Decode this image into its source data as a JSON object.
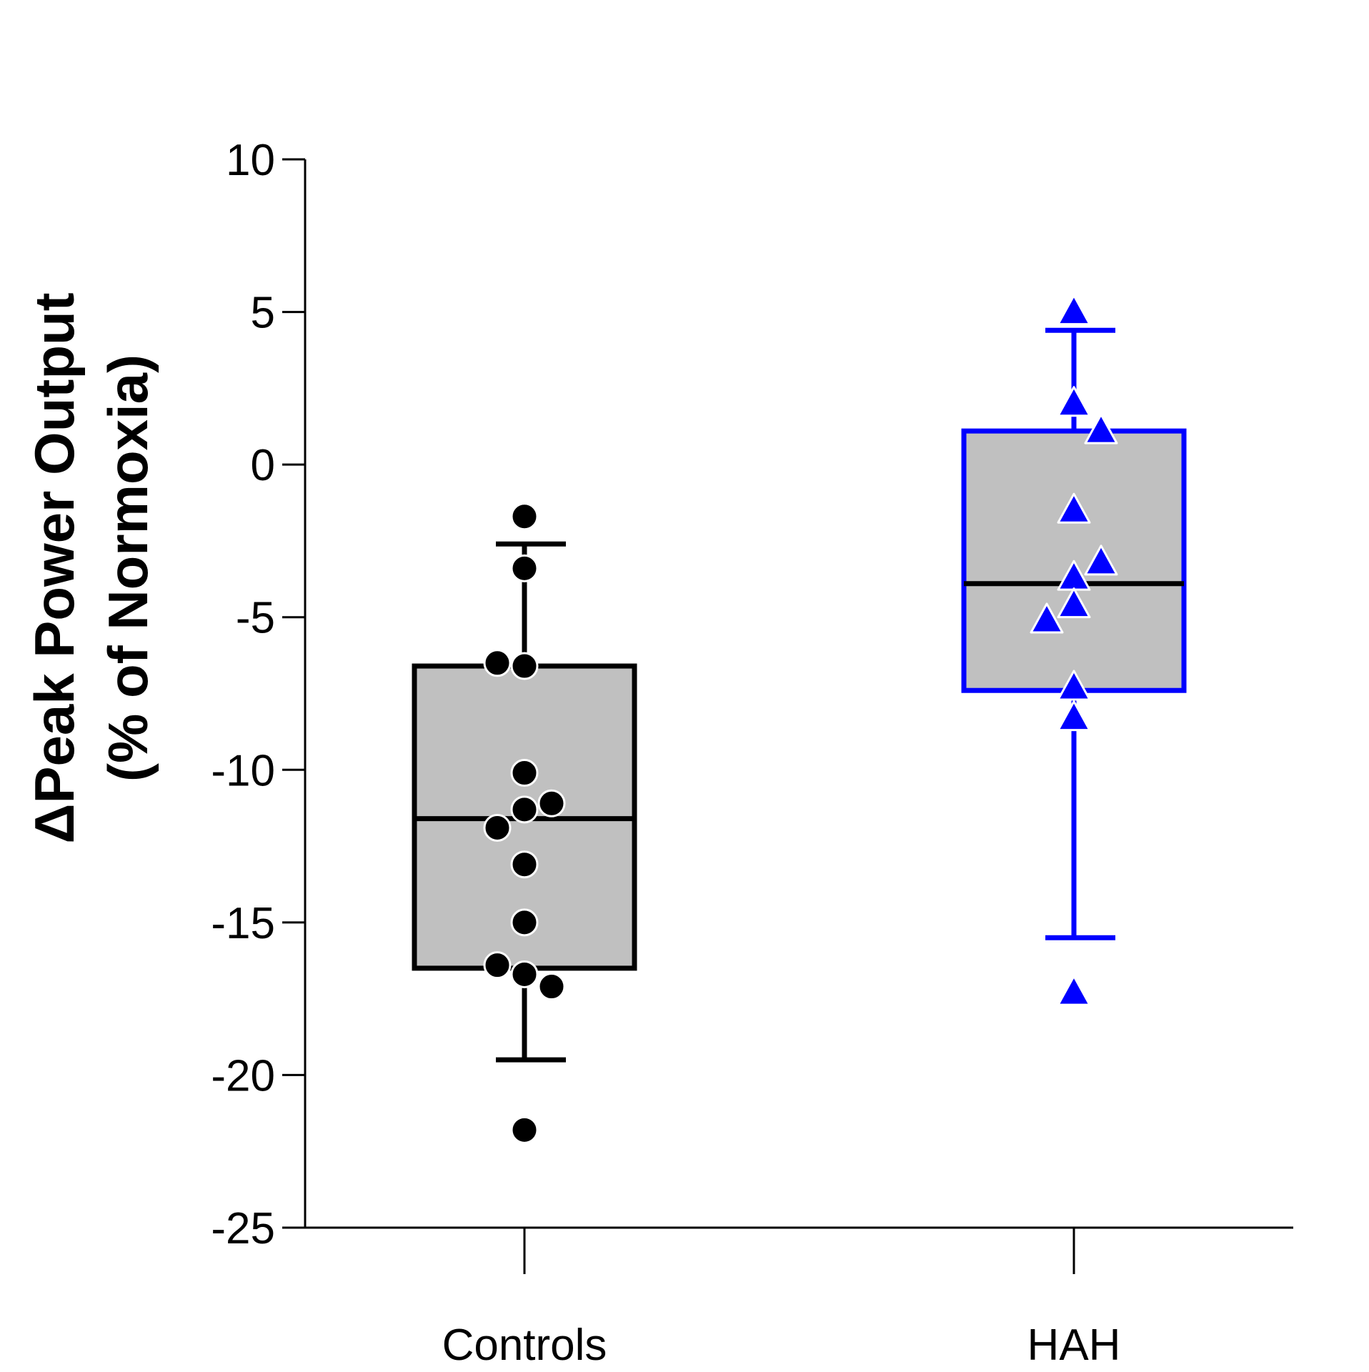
{
  "chart_data": {
    "type": "box",
    "ylabel_line1": "ΔPeak Power Output",
    "ylabel_line2": "(% of Normoxia)",
    "ylim": [
      -25,
      10
    ],
    "yticks": [
      10,
      5,
      0,
      -5,
      -10,
      -15,
      -20,
      -25
    ],
    "categories": [
      "Controls",
      "HAH"
    ],
    "groups": [
      {
        "name": "Controls",
        "color": "#000000",
        "box_fill": "#c0c0c0",
        "marker": "circle",
        "whisker_low": -19.5,
        "q1": -16.5,
        "median": -11.6,
        "q3": -6.6,
        "whisker_high": -2.6,
        "points": [
          {
            "offset": 0,
            "value": -1.7
          },
          {
            "offset": 0,
            "value": -3.4
          },
          {
            "offset": -1,
            "value": -6.5
          },
          {
            "offset": 0,
            "value": -6.6
          },
          {
            "offset": 0,
            "value": -10.1
          },
          {
            "offset": 0,
            "value": -11.3
          },
          {
            "offset": 1,
            "value": -11.1
          },
          {
            "offset": -1,
            "value": -11.9
          },
          {
            "offset": 0,
            "value": -13.1
          },
          {
            "offset": 0,
            "value": -15.0
          },
          {
            "offset": -1,
            "value": -16.4
          },
          {
            "offset": 0,
            "value": -16.7
          },
          {
            "offset": 1,
            "value": -17.1
          },
          {
            "offset": 0,
            "value": -21.8
          }
        ]
      },
      {
        "name": "HAH",
        "color": "#0000ff",
        "box_fill": "#c0c0c0",
        "marker": "triangle",
        "whisker_low": -15.5,
        "q1": -7.4,
        "median": -3.9,
        "q3": 1.1,
        "whisker_high": 4.4,
        "points": [
          {
            "offset": 0,
            "value": 5.0
          },
          {
            "offset": 0,
            "value": 2.0
          },
          {
            "offset": 1,
            "value": 1.1
          },
          {
            "offset": 0,
            "value": -1.5
          },
          {
            "offset": 1,
            "value": -3.2
          },
          {
            "offset": 0,
            "value": -3.7
          },
          {
            "offset": 0,
            "value": -4.6
          },
          {
            "offset": -1,
            "value": -5.1
          },
          {
            "offset": 0,
            "value": -7.3
          },
          {
            "offset": 0,
            "value": -8.3
          },
          {
            "offset": 0,
            "value": -17.3
          }
        ]
      }
    ]
  }
}
